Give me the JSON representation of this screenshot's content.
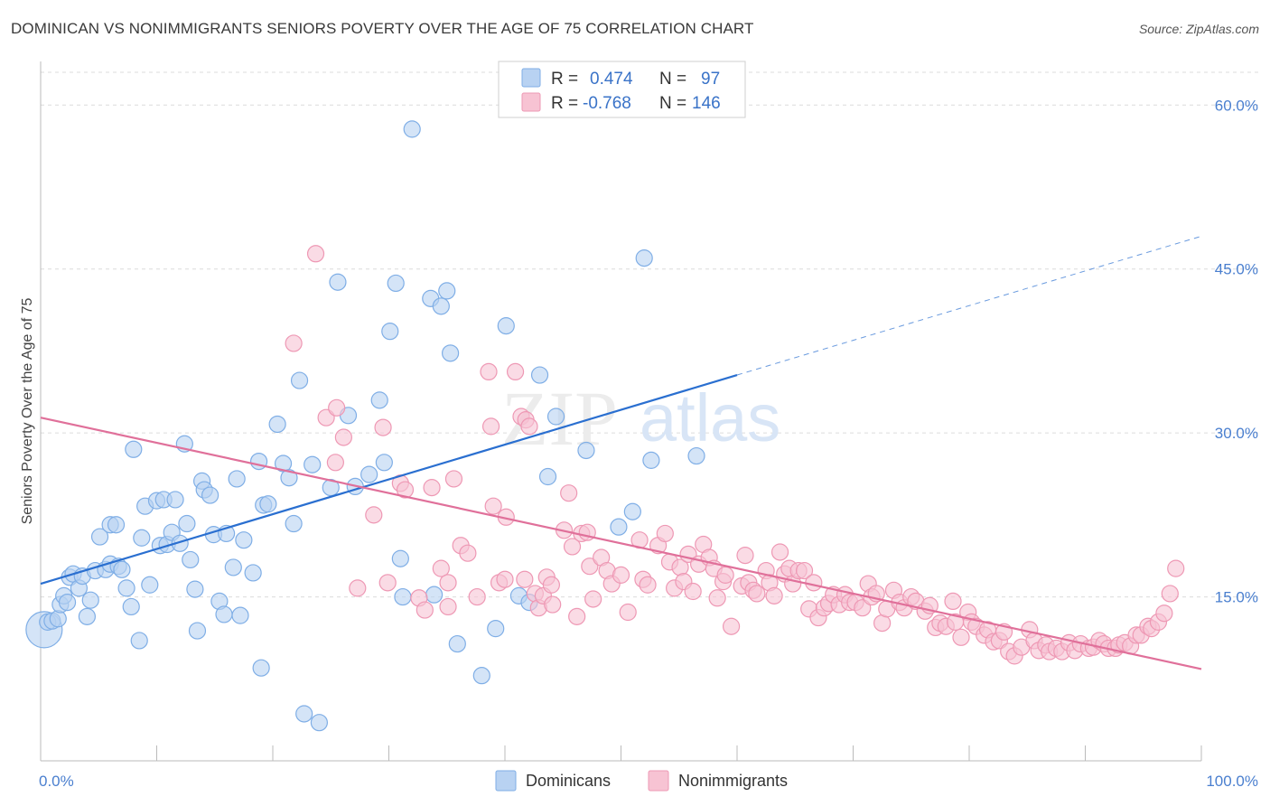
{
  "header": {
    "title": "DOMINICAN VS NONIMMIGRANTS SENIORS POVERTY OVER THE AGE OF 75 CORRELATION CHART",
    "source": "Source: ZipAtlas.com"
  },
  "watermark": {
    "zip": "ZIP",
    "atlas": "atlas"
  },
  "legend": {
    "rows": [
      {
        "r_label": "R =",
        "r_value": "0.474",
        "n_label": "N =",
        "n_value": "97"
      },
      {
        "r_label": "R =",
        "r_value": "-0.768",
        "n_label": "N =",
        "n_value": "146"
      }
    ]
  },
  "bottom_legend": {
    "dominicans": "Dominicans",
    "nonimmigrants": "Nonimmigrants"
  },
  "colors": {
    "blue_fill": "#b8d2f2",
    "blue_stroke": "#7faee6",
    "blue_line": "#2a6fd0",
    "pink_fill": "#f7c3d3",
    "pink_stroke": "#ee98b4",
    "pink_line": "#e0709a",
    "tick_text": "#4a7fcf",
    "grid": "#dcdcdc"
  },
  "chart_data": {
    "type": "scatter",
    "title": "DOMINICAN VS NONIMMIGRANTS SENIORS POVERTY OVER THE AGE OF 75 CORRELATION CHART",
    "xlabel": "",
    "ylabel": "Seniors Poverty Over the Age of 75",
    "xlim": [
      0,
      100
    ],
    "ylim": [
      0,
      63
    ],
    "x_tick_labels": [
      "0.0%",
      "100.0%"
    ],
    "y_ticks": [
      15,
      30,
      45,
      60
    ],
    "y_tick_labels": [
      "15.0%",
      "30.0%",
      "45.0%",
      "60.0%"
    ],
    "grid": "horizontal dashed",
    "legend_position": "top-center",
    "series": [
      {
        "name": "Dominicans",
        "color": "#7faee6",
        "r": 0.474,
        "n": 97,
        "trend": {
          "x0": 0,
          "y0": 16.2,
          "x1": 60,
          "y1": 35.3,
          "dashed_to_x": 100,
          "dashed_to_y": 48.0
        },
        "points": [
          [
            0.3,
            12.0
          ],
          [
            0.6,
            12.7
          ],
          [
            1.0,
            12.8
          ],
          [
            1.5,
            13.0
          ],
          [
            1.7,
            14.3
          ],
          [
            2.0,
            15.1
          ],
          [
            2.3,
            14.5
          ],
          [
            2.5,
            16.8
          ],
          [
            2.8,
            17.1
          ],
          [
            3.3,
            15.8
          ],
          [
            3.6,
            16.9
          ],
          [
            4.0,
            13.2
          ],
          [
            4.3,
            14.7
          ],
          [
            4.7,
            17.4
          ],
          [
            5.1,
            20.5
          ],
          [
            5.6,
            17.5
          ],
          [
            6.0,
            18.0
          ],
          [
            6.0,
            21.6
          ],
          [
            6.5,
            21.6
          ],
          [
            6.7,
            17.8
          ],
          [
            7.0,
            17.5
          ],
          [
            7.4,
            15.8
          ],
          [
            7.8,
            14.1
          ],
          [
            8.0,
            28.5
          ],
          [
            8.5,
            11.0
          ],
          [
            8.7,
            20.4
          ],
          [
            9.0,
            23.3
          ],
          [
            9.4,
            16.1
          ],
          [
            10.0,
            23.8
          ],
          [
            10.3,
            19.7
          ],
          [
            10.6,
            23.9
          ],
          [
            10.9,
            19.8
          ],
          [
            11.3,
            20.9
          ],
          [
            11.6,
            23.9
          ],
          [
            12.0,
            19.9
          ],
          [
            12.4,
            29.0
          ],
          [
            12.6,
            21.7
          ],
          [
            12.9,
            18.4
          ],
          [
            13.3,
            15.7
          ],
          [
            13.5,
            11.9
          ],
          [
            13.9,
            25.6
          ],
          [
            14.1,
            24.8
          ],
          [
            14.6,
            24.3
          ],
          [
            14.9,
            20.7
          ],
          [
            15.4,
            14.6
          ],
          [
            15.8,
            13.4
          ],
          [
            16.0,
            20.8
          ],
          [
            16.6,
            17.7
          ],
          [
            16.9,
            25.8
          ],
          [
            17.2,
            13.3
          ],
          [
            17.5,
            20.2
          ],
          [
            18.3,
            17.2
          ],
          [
            18.8,
            27.4
          ],
          [
            19.2,
            23.4
          ],
          [
            19.6,
            23.5
          ],
          [
            20.4,
            30.8
          ],
          [
            20.9,
            27.2
          ],
          [
            21.4,
            25.9
          ],
          [
            21.8,
            21.7
          ],
          [
            22.3,
            34.8
          ],
          [
            22.7,
            4.3
          ],
          [
            23.4,
            27.1
          ],
          [
            24.0,
            3.5
          ],
          [
            25.0,
            25.0
          ],
          [
            25.6,
            43.8
          ],
          [
            26.5,
            31.6
          ],
          [
            27.1,
            25.1
          ],
          [
            28.3,
            26.2
          ],
          [
            29.2,
            33.0
          ],
          [
            29.6,
            27.3
          ],
          [
            30.1,
            39.3
          ],
          [
            30.6,
            43.7
          ],
          [
            31.0,
            18.5
          ],
          [
            31.2,
            15.0
          ],
          [
            32.0,
            57.8
          ],
          [
            33.6,
            42.3
          ],
          [
            33.9,
            15.2
          ],
          [
            34.5,
            41.6
          ],
          [
            35.0,
            43.0
          ],
          [
            35.3,
            37.3
          ],
          [
            35.9,
            10.7
          ],
          [
            38.0,
            7.8
          ],
          [
            39.2,
            12.1
          ],
          [
            40.1,
            39.8
          ],
          [
            41.2,
            15.1
          ],
          [
            42.1,
            14.5
          ],
          [
            43.0,
            35.3
          ],
          [
            43.7,
            26.0
          ],
          [
            44.4,
            31.5
          ],
          [
            47.0,
            28.4
          ],
          [
            49.8,
            21.4
          ],
          [
            51.0,
            22.8
          ],
          [
            52.0,
            46.0
          ],
          [
            52.6,
            27.5
          ],
          [
            56.5,
            27.9
          ],
          [
            19.0,
            8.5
          ]
        ]
      },
      {
        "name": "Nonimmigrants",
        "color": "#ee98b4",
        "r": -0.768,
        "n": 146,
        "trend": {
          "x0": 0,
          "y0": 31.4,
          "x1": 100,
          "y1": 8.4
        },
        "points": [
          [
            23.7,
            46.4
          ],
          [
            21.8,
            38.2
          ],
          [
            24.6,
            31.4
          ],
          [
            25.5,
            32.3
          ],
          [
            26.1,
            29.6
          ],
          [
            25.4,
            27.3
          ],
          [
            27.3,
            15.8
          ],
          [
            28.7,
            22.5
          ],
          [
            29.5,
            30.5
          ],
          [
            29.9,
            16.3
          ],
          [
            31.0,
            25.4
          ],
          [
            31.4,
            24.8
          ],
          [
            32.6,
            14.9
          ],
          [
            33.1,
            13.8
          ],
          [
            33.7,
            25.0
          ],
          [
            34.5,
            17.6
          ],
          [
            35.1,
            16.3
          ],
          [
            35.1,
            14.1
          ],
          [
            35.6,
            25.8
          ],
          [
            36.2,
            19.7
          ],
          [
            36.8,
            19.0
          ],
          [
            37.6,
            15.0
          ],
          [
            38.6,
            35.6
          ],
          [
            38.8,
            30.6
          ],
          [
            39.0,
            23.3
          ],
          [
            39.5,
            16.3
          ],
          [
            40.0,
            16.6
          ],
          [
            40.1,
            22.3
          ],
          [
            40.9,
            35.6
          ],
          [
            41.4,
            31.5
          ],
          [
            41.8,
            31.2
          ],
          [
            42.1,
            30.6
          ],
          [
            41.7,
            16.6
          ],
          [
            42.6,
            15.3
          ],
          [
            42.9,
            14.0
          ],
          [
            43.3,
            15.1
          ],
          [
            43.6,
            16.8
          ],
          [
            44.0,
            16.1
          ],
          [
            44.1,
            14.3
          ],
          [
            45.1,
            21.1
          ],
          [
            45.5,
            24.5
          ],
          [
            45.8,
            19.6
          ],
          [
            46.2,
            13.2
          ],
          [
            46.6,
            20.8
          ],
          [
            47.1,
            20.9
          ],
          [
            47.3,
            17.8
          ],
          [
            47.6,
            14.8
          ],
          [
            48.3,
            18.6
          ],
          [
            48.8,
            17.4
          ],
          [
            49.2,
            16.2
          ],
          [
            50.0,
            17.0
          ],
          [
            50.6,
            13.6
          ],
          [
            51.6,
            20.2
          ],
          [
            51.9,
            16.6
          ],
          [
            52.3,
            16.1
          ],
          [
            53.2,
            19.7
          ],
          [
            53.8,
            20.8
          ],
          [
            54.2,
            18.2
          ],
          [
            54.6,
            15.8
          ],
          [
            55.1,
            17.7
          ],
          [
            55.4,
            16.4
          ],
          [
            55.8,
            18.9
          ],
          [
            56.2,
            15.5
          ],
          [
            56.7,
            18.0
          ],
          [
            57.1,
            19.8
          ],
          [
            57.6,
            18.6
          ],
          [
            58.0,
            17.6
          ],
          [
            58.3,
            14.9
          ],
          [
            58.8,
            16.4
          ],
          [
            59.0,
            17.0
          ],
          [
            59.5,
            12.3
          ],
          [
            60.4,
            16.0
          ],
          [
            60.7,
            18.8
          ],
          [
            61.0,
            16.3
          ],
          [
            61.4,
            15.6
          ],
          [
            61.7,
            15.3
          ],
          [
            62.5,
            17.4
          ],
          [
            62.8,
            16.3
          ],
          [
            63.2,
            15.1
          ],
          [
            63.7,
            19.1
          ],
          [
            64.1,
            17.1
          ],
          [
            64.5,
            17.6
          ],
          [
            64.8,
            16.2
          ],
          [
            65.3,
            17.4
          ],
          [
            65.8,
            17.4
          ],
          [
            66.2,
            13.9
          ],
          [
            66.6,
            16.3
          ],
          [
            67.0,
            13.1
          ],
          [
            67.5,
            14.0
          ],
          [
            67.9,
            14.4
          ],
          [
            68.3,
            15.2
          ],
          [
            68.8,
            14.3
          ],
          [
            69.3,
            15.2
          ],
          [
            69.7,
            14.5
          ],
          [
            70.2,
            14.5
          ],
          [
            70.8,
            14.0
          ],
          [
            71.3,
            16.2
          ],
          [
            71.6,
            15.0
          ],
          [
            72.0,
            15.3
          ],
          [
            72.5,
            12.6
          ],
          [
            72.9,
            13.9
          ],
          [
            73.5,
            15.6
          ],
          [
            74.0,
            14.5
          ],
          [
            74.4,
            14.0
          ],
          [
            75.0,
            15.0
          ],
          [
            75.4,
            14.6
          ],
          [
            76.2,
            13.7
          ],
          [
            76.6,
            14.2
          ],
          [
            77.1,
            12.2
          ],
          [
            77.5,
            12.6
          ],
          [
            78.0,
            12.3
          ],
          [
            78.6,
            14.6
          ],
          [
            78.8,
            12.7
          ],
          [
            79.3,
            11.3
          ],
          [
            79.9,
            13.6
          ],
          [
            80.2,
            12.7
          ],
          [
            80.6,
            12.3
          ],
          [
            81.3,
            11.5
          ],
          [
            81.6,
            12.0
          ],
          [
            82.1,
            10.9
          ],
          [
            82.6,
            11.0
          ],
          [
            83.0,
            11.8
          ],
          [
            83.4,
            10.0
          ],
          [
            83.9,
            9.6
          ],
          [
            84.5,
            10.4
          ],
          [
            85.2,
            12.0
          ],
          [
            85.6,
            11.0
          ],
          [
            86.0,
            10.1
          ],
          [
            86.6,
            10.6
          ],
          [
            86.9,
            10.0
          ],
          [
            87.5,
            10.3
          ],
          [
            88.0,
            10.0
          ],
          [
            88.6,
            10.8
          ],
          [
            89.1,
            10.1
          ],
          [
            89.6,
            10.7
          ],
          [
            90.3,
            10.3
          ],
          [
            90.7,
            10.4
          ],
          [
            91.2,
            11.0
          ],
          [
            91.6,
            10.7
          ],
          [
            92.0,
            10.3
          ],
          [
            92.6,
            10.3
          ],
          [
            92.9,
            10.6
          ],
          [
            93.4,
            10.8
          ],
          [
            93.9,
            10.5
          ],
          [
            94.4,
            11.5
          ],
          [
            94.8,
            11.5
          ],
          [
            95.4,
            12.3
          ],
          [
            95.7,
            12.1
          ],
          [
            96.3,
            12.7
          ],
          [
            96.8,
            13.5
          ],
          [
            97.3,
            15.3
          ],
          [
            97.8,
            17.6
          ]
        ]
      }
    ]
  }
}
